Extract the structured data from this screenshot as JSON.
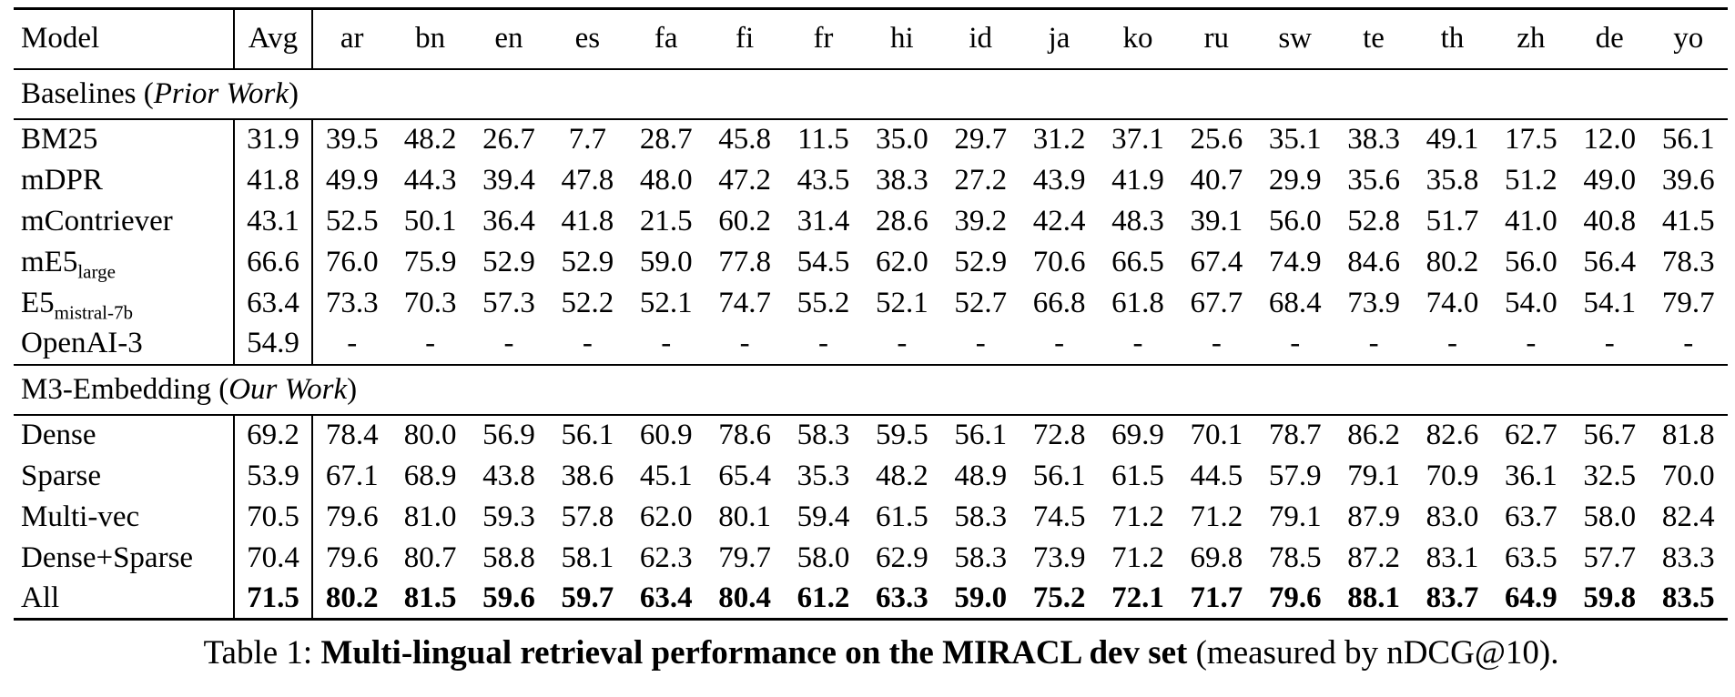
{
  "table": {
    "columns": [
      "Model",
      "Avg",
      "ar",
      "bn",
      "en",
      "es",
      "fa",
      "fi",
      "fr",
      "hi",
      "id",
      "ja",
      "ko",
      "ru",
      "sw",
      "te",
      "th",
      "zh",
      "de",
      "yo"
    ],
    "sections": [
      {
        "title_regular": "Baselines (",
        "title_italic": "Prior Work",
        "title_close": ")",
        "rows": [
          {
            "model": "BM25",
            "sub": "",
            "avg": "31.9",
            "bold": false,
            "values": [
              "39.5",
              "48.2",
              "26.7",
              "7.7",
              "28.7",
              "45.8",
              "11.5",
              "35.0",
              "29.7",
              "31.2",
              "37.1",
              "25.6",
              "35.1",
              "38.3",
              "49.1",
              "17.5",
              "12.0",
              "56.1"
            ]
          },
          {
            "model": "mDPR",
            "sub": "",
            "avg": "41.8",
            "bold": false,
            "values": [
              "49.9",
              "44.3",
              "39.4",
              "47.8",
              "48.0",
              "47.2",
              "43.5",
              "38.3",
              "27.2",
              "43.9",
              "41.9",
              "40.7",
              "29.9",
              "35.6",
              "35.8",
              "51.2",
              "49.0",
              "39.6"
            ]
          },
          {
            "model": "mContriever",
            "sub": "",
            "avg": "43.1",
            "bold": false,
            "values": [
              "52.5",
              "50.1",
              "36.4",
              "41.8",
              "21.5",
              "60.2",
              "31.4",
              "28.6",
              "39.2",
              "42.4",
              "48.3",
              "39.1",
              "56.0",
              "52.8",
              "51.7",
              "41.0",
              "40.8",
              "41.5"
            ]
          },
          {
            "model": "mE5",
            "sub": "large",
            "avg": "66.6",
            "bold": false,
            "values": [
              "76.0",
              "75.9",
              "52.9",
              "52.9",
              "59.0",
              "77.8",
              "54.5",
              "62.0",
              "52.9",
              "70.6",
              "66.5",
              "67.4",
              "74.9",
              "84.6",
              "80.2",
              "56.0",
              "56.4",
              "78.3"
            ]
          },
          {
            "model": "E5",
            "sub": "mistral-7b",
            "avg": "63.4",
            "bold": false,
            "values": [
              "73.3",
              "70.3",
              "57.3",
              "52.2",
              "52.1",
              "74.7",
              "55.2",
              "52.1",
              "52.7",
              "66.8",
              "61.8",
              "67.7",
              "68.4",
              "73.9",
              "74.0",
              "54.0",
              "54.1",
              "79.7"
            ]
          },
          {
            "model": "OpenAI-3",
            "sub": "",
            "avg": "54.9",
            "bold": false,
            "values": [
              "-",
              "-",
              "-",
              "-",
              "-",
              "-",
              "-",
              "-",
              "-",
              "-",
              "-",
              "-",
              "-",
              "-",
              "-",
              "-",
              "-",
              "-"
            ]
          }
        ]
      },
      {
        "title_regular": "M3-Embedding (",
        "title_italic": "Our Work",
        "title_close": ")",
        "rows": [
          {
            "model": "Dense",
            "sub": "",
            "avg": "69.2",
            "bold": false,
            "values": [
              "78.4",
              "80.0",
              "56.9",
              "56.1",
              "60.9",
              "78.6",
              "58.3",
              "59.5",
              "56.1",
              "72.8",
              "69.9",
              "70.1",
              "78.7",
              "86.2",
              "82.6",
              "62.7",
              "56.7",
              "81.8"
            ]
          },
          {
            "model": "Sparse",
            "sub": "",
            "avg": "53.9",
            "bold": false,
            "values": [
              "67.1",
              "68.9",
              "43.8",
              "38.6",
              "45.1",
              "65.4",
              "35.3",
              "48.2",
              "48.9",
              "56.1",
              "61.5",
              "44.5",
              "57.9",
              "79.1",
              "70.9",
              "36.1",
              "32.5",
              "70.0"
            ]
          },
          {
            "model": "Multi-vec",
            "sub": "",
            "avg": "70.5",
            "bold": false,
            "values": [
              "79.6",
              "81.0",
              "59.3",
              "57.8",
              "62.0",
              "80.1",
              "59.4",
              "61.5",
              "58.3",
              "74.5",
              "71.2",
              "71.2",
              "79.1",
              "87.9",
              "83.0",
              "63.7",
              "58.0",
              "82.4"
            ]
          },
          {
            "model": "Dense+Sparse",
            "sub": "",
            "avg": "70.4",
            "bold": false,
            "values": [
              "79.6",
              "80.7",
              "58.8",
              "58.1",
              "62.3",
              "79.7",
              "58.0",
              "62.9",
              "58.3",
              "73.9",
              "71.2",
              "69.8",
              "78.5",
              "87.2",
              "83.1",
              "63.5",
              "57.7",
              "83.3"
            ]
          },
          {
            "model": "All",
            "sub": "",
            "avg": "71.5",
            "bold": true,
            "values": [
              "80.2",
              "81.5",
              "59.6",
              "59.7",
              "63.4",
              "80.4",
              "61.2",
              "63.3",
              "59.0",
              "75.2",
              "72.1",
              "71.7",
              "79.6",
              "88.1",
              "83.7",
              "64.9",
              "59.8",
              "83.5"
            ]
          }
        ]
      }
    ]
  },
  "caption": {
    "prefix": "Table 1: ",
    "bold": "Multi-lingual retrieval performance on the MIRACL dev set",
    "suffix": " (measured by nDCG@10)."
  }
}
